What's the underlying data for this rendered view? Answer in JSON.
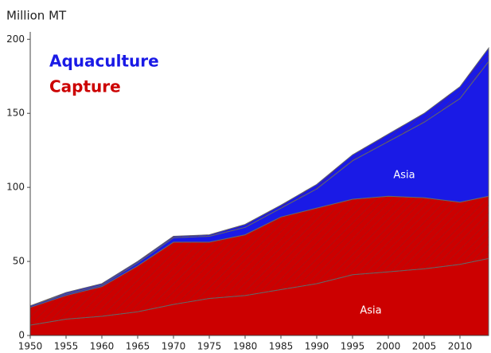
{
  "chart_data": {
    "type": "stacked-area",
    "y_label": "Million MT",
    "x": [
      1950,
      1955,
      1960,
      1965,
      1970,
      1975,
      1980,
      1985,
      1990,
      1995,
      2000,
      2005,
      2010,
      2014
    ],
    "xlim": [
      1950,
      2014
    ],
    "xticks": [
      1950,
      1955,
      1960,
      1965,
      1970,
      1975,
      1980,
      1985,
      1990,
      1995,
      2000,
      2005,
      2010
    ],
    "ylim": [
      0,
      205
    ],
    "yticks": [
      0,
      50,
      100,
      150,
      200
    ],
    "groups": [
      {
        "name": "Capture",
        "color": "#cc0000",
        "series": [
          {
            "name": "Asia",
            "hatch": false,
            "values": [
              7,
              11,
              13,
              16,
              21,
              25,
              27,
              31,
              35,
              41,
              43,
              45,
              48,
              52
            ]
          },
          {
            "hatch": true,
            "values": [
              12,
              16,
              20,
              31,
              42,
              38,
              41,
              49,
              51,
              51,
              51,
              48,
              42,
              42
            ]
          }
        ]
      },
      {
        "name": "Aquaculture",
        "color": "#1a1ae6",
        "series": [
          {
            "name": "Asia",
            "hatch": false,
            "values": [
              1,
              1,
              1,
              2,
              3,
              4,
              5,
              6,
              13,
              26,
              37,
              51,
              70,
              91
            ]
          },
          {
            "hatch": true,
            "values": [
              0,
              1,
              1,
              1,
              1,
              1,
              2,
              2,
              3,
              4,
              5,
              6,
              8,
              9
            ]
          }
        ]
      }
    ]
  }
}
